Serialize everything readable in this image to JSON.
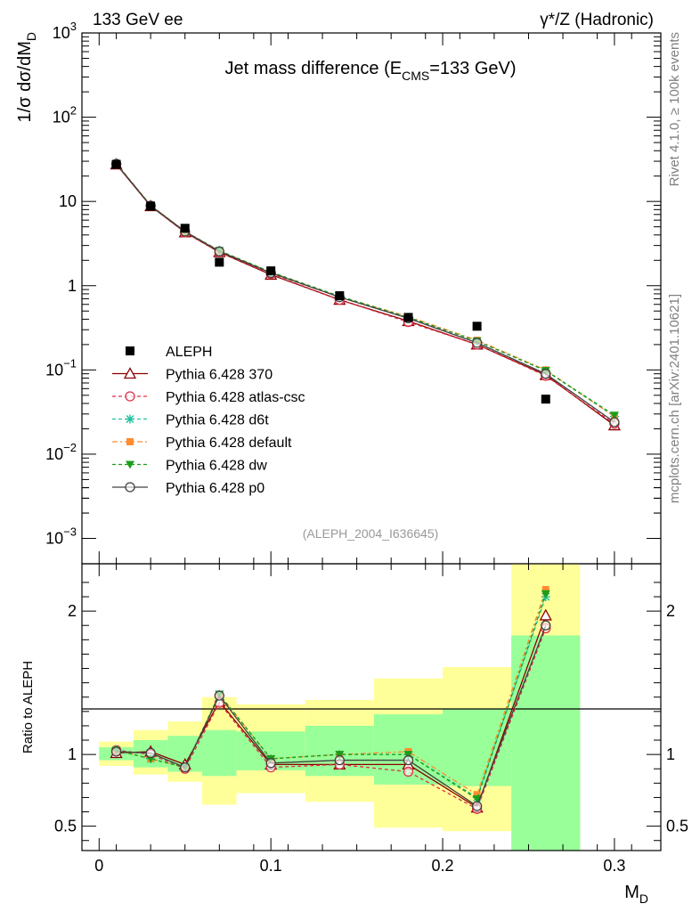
{
  "header": {
    "left": "133 GeV ee",
    "right": "γ*/Z (Hadronic)"
  },
  "side_labels": {
    "rivet": "Rivet 4.1.0, ≥ 100k events",
    "mcplots": "mcplots.cern.ch [arXiv:2401.10621]"
  },
  "colors": {
    "aleph": "#000000",
    "p370": "#8b0000",
    "atlas": "#e0304a",
    "d6t": "#20c0a0",
    "default": "#ff8c30",
    "dw": "#1a9e1a",
    "p0": "#404040",
    "band_outer": "#ffff99",
    "band_inner": "#99ff99"
  },
  "chart_data": {
    "type": "line",
    "title": "Jet mass difference (E_CMS=133 GeV)",
    "title_parts": {
      "pre": "Jet mass difference (E",
      "sub": "CMS",
      "post": "=133 GeV)"
    },
    "analysis_id": "(ALEPH_2004_I636645)",
    "xlabel": "M_D",
    "xlabel_parts": {
      "main": "M",
      "sub": "D"
    },
    "ylabel": "1/σ dσ/dM_D",
    "ylabel_parts": {
      "main": "1/σ  dσ/dM",
      "sub": "D"
    },
    "ratio_ylabel": "Ratio to ALEPH",
    "xlim": [
      -0.01,
      0.327
    ],
    "ylim_log": [
      0.0005,
      1000
    ],
    "ratio_ylim": [
      0.33,
      2.33
    ],
    "x_ticks": [
      0,
      0.1,
      0.2,
      0.3
    ],
    "x_tick_labels": [
      "0",
      "0.1",
      "0.2",
      "0.3"
    ],
    "y_ticks": [
      {
        "value": 0.001,
        "base": "10",
        "exp": "−3"
      },
      {
        "value": 0.01,
        "base": "10",
        "exp": "−2"
      },
      {
        "value": 0.1,
        "base": "10",
        "exp": "−1"
      },
      {
        "value": 1,
        "base": "1",
        "exp": ""
      },
      {
        "value": 10,
        "base": "10",
        "exp": ""
      },
      {
        "value": 100,
        "base": "10",
        "exp": "2"
      },
      {
        "value": 1000,
        "base": "10",
        "exp": "3"
      }
    ],
    "ratio_ticks": [
      {
        "value": 0.5,
        "label": "0.5"
      },
      {
        "value": 1,
        "label": "1"
      },
      {
        "value": 2,
        "label": "2"
      }
    ],
    "x": [
      0.01,
      0.03,
      0.05,
      0.07,
      0.1,
      0.14,
      0.18,
      0.22,
      0.26,
      0.3
    ],
    "bins": [
      [
        0.0,
        0.02
      ],
      [
        0.02,
        0.04
      ],
      [
        0.04,
        0.06
      ],
      [
        0.06,
        0.08
      ],
      [
        0.08,
        0.12
      ],
      [
        0.12,
        0.16
      ],
      [
        0.16,
        0.2
      ],
      [
        0.2,
        0.24
      ],
      [
        0.24,
        0.28
      ]
    ],
    "data": {
      "name": "ALEPH",
      "x": [
        0.01,
        0.03,
        0.05,
        0.07,
        0.1,
        0.14,
        0.18,
        0.22,
        0.26
      ],
      "y": [
        27.5,
        8.8,
        4.8,
        1.9,
        1.5,
        0.76,
        0.42,
        0.33,
        0.045
      ]
    },
    "bands": {
      "outer_low": [
        0.92,
        0.86,
        0.81,
        0.65,
        0.73,
        0.67,
        0.49,
        0.465,
        0.33
      ],
      "outer_high": [
        1.09,
        1.17,
        1.23,
        1.4,
        1.35,
        1.38,
        1.53,
        1.61,
        2.33
      ],
      "inner_low": [
        0.96,
        0.91,
        0.88,
        0.85,
        0.89,
        0.85,
        0.79,
        0.78,
        0.33
      ],
      "inner_high": [
        1.05,
        1.1,
        1.13,
        1.17,
        1.16,
        1.2,
        1.28,
        1.32,
        1.83
      ]
    },
    "series": [
      {
        "name": "Pythia 6.428 370",
        "key": "p370",
        "marker": "triangle-open",
        "dash": "",
        "y": [
          27.5,
          8.8,
          4.3,
          2.5,
          1.35,
          0.68,
          0.38,
          0.2,
          0.087,
          0.022
        ],
        "ratio": [
          1.01,
          1.02,
          0.93,
          1.37,
          0.93,
          0.93,
          0.93,
          0.63,
          1.97
        ]
      },
      {
        "name": "Pythia 6.428 atlas-csc",
        "key": "atlas",
        "marker": "circle-open",
        "dash": "4,3",
        "y": [
          27.7,
          8.9,
          4.3,
          2.5,
          1.38,
          0.68,
          0.37,
          0.2,
          0.085,
          0.023
        ],
        "ratio": [
          1.03,
          1.0,
          0.9,
          1.36,
          0.91,
          0.93,
          0.88,
          0.62,
          1.88
        ]
      },
      {
        "name": "Pythia 6.428 d6t",
        "key": "d6t",
        "marker": "star",
        "dash": "4,3",
        "y": [
          28.2,
          9.0,
          4.4,
          2.6,
          1.45,
          0.74,
          0.42,
          0.22,
          0.098,
          0.028
        ],
        "ratio": [
          1.03,
          0.97,
          0.91,
          1.42,
          0.97,
          1.0,
          1.0,
          0.7,
          2.1
        ]
      },
      {
        "name": "Pythia 6.428 default",
        "key": "default",
        "marker": "square",
        "dash": "6,3,2,3",
        "y": [
          28.2,
          9.0,
          4.4,
          2.6,
          1.45,
          0.74,
          0.43,
          0.225,
          0.1,
          0.028
        ],
        "ratio": [
          1.03,
          0.97,
          0.91,
          1.42,
          0.97,
          1.0,
          1.02,
          0.72,
          2.15
        ]
      },
      {
        "name": "Pythia 6.428 dw",
        "key": "dw",
        "marker": "triangle-down",
        "dash": "4,3",
        "y": [
          28.2,
          8.9,
          4.4,
          2.6,
          1.45,
          0.75,
          0.42,
          0.22,
          0.098,
          0.029
        ],
        "ratio": [
          1.03,
          0.97,
          0.91,
          1.42,
          0.97,
          1.0,
          1.0,
          0.69,
          2.12
        ]
      },
      {
        "name": "Pythia 6.428 p0",
        "key": "p0",
        "marker": "circle-open",
        "dash": "",
        "y": [
          28.0,
          8.9,
          4.4,
          2.55,
          1.42,
          0.73,
          0.41,
          0.21,
          0.09,
          0.024
        ],
        "ratio": [
          1.02,
          1.01,
          0.91,
          1.41,
          0.94,
          0.96,
          0.96,
          0.64,
          1.9
        ]
      }
    ]
  }
}
